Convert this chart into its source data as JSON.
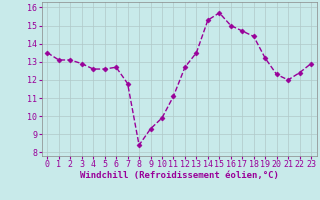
{
  "x": [
    0,
    1,
    2,
    3,
    4,
    5,
    6,
    7,
    8,
    9,
    10,
    11,
    12,
    13,
    14,
    15,
    16,
    17,
    18,
    19,
    20,
    21,
    22,
    23
  ],
  "y": [
    13.5,
    13.1,
    13.1,
    12.9,
    12.6,
    12.6,
    12.7,
    11.8,
    8.4,
    9.3,
    9.9,
    11.1,
    12.7,
    13.5,
    15.3,
    15.7,
    15.0,
    14.7,
    14.4,
    13.2,
    12.3,
    12.0,
    12.4,
    12.9
  ],
  "line_color": "#990099",
  "marker": "D",
  "marker_size": 2.5,
  "line_width": 1.0,
  "line_style": "--",
  "bg_color": "#c8eaea",
  "grid_color": "#b0c8c8",
  "tick_color": "#990099",
  "xlabel": "Windchill (Refroidissement éolien,°C)",
  "xlabel_fontsize": 6.5,
  "tick_fontsize": 6,
  "yticks": [
    8,
    9,
    10,
    11,
    12,
    13,
    14,
    15,
    16
  ],
  "xticks": [
    0,
    1,
    2,
    3,
    4,
    5,
    6,
    7,
    8,
    9,
    10,
    11,
    12,
    13,
    14,
    15,
    16,
    17,
    18,
    19,
    20,
    21,
    22,
    23
  ],
  "xlim": [
    -0.5,
    23.5
  ],
  "ylim": [
    7.8,
    16.3
  ]
}
